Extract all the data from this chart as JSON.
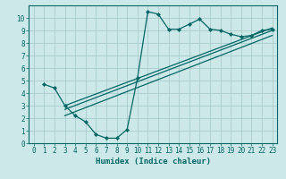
{
  "xlabel": "Humidex (Indice chaleur)",
  "ylabel": "",
  "background_color": "#cde8e8",
  "grid_color": "#a8cccc",
  "line_color": "#006666",
  "xlim": [
    -0.5,
    23.5
  ],
  "ylim": [
    0,
    11
  ],
  "xticks": [
    0,
    1,
    2,
    3,
    4,
    5,
    6,
    7,
    8,
    9,
    10,
    11,
    12,
    13,
    14,
    15,
    16,
    17,
    18,
    19,
    20,
    21,
    22,
    23
  ],
  "yticks": [
    0,
    1,
    2,
    3,
    4,
    5,
    6,
    7,
    8,
    9,
    10
  ],
  "line1_x": [
    1,
    2,
    3,
    4,
    5,
    6,
    7,
    8,
    9,
    10,
    11,
    12,
    13,
    14,
    15,
    16,
    17,
    18,
    19,
    20,
    21,
    22,
    23
  ],
  "line1_y": [
    4.7,
    4.4,
    3.0,
    2.2,
    1.7,
    0.7,
    0.4,
    0.4,
    1.1,
    5.2,
    10.5,
    10.3,
    9.1,
    9.1,
    9.5,
    9.9,
    9.1,
    9.0,
    8.7,
    8.5,
    8.6,
    9.0,
    9.1
  ],
  "line2_x": [
    3,
    23
  ],
  "line2_y": [
    3.0,
    9.2
  ],
  "line3_x": [
    3,
    23
  ],
  "line3_y": [
    2.2,
    8.6
  ],
  "line4_x": [
    3,
    23
  ],
  "line4_y": [
    2.7,
    9.0
  ],
  "tick_fontsize": 5.5,
  "xlabel_fontsize": 6.5
}
